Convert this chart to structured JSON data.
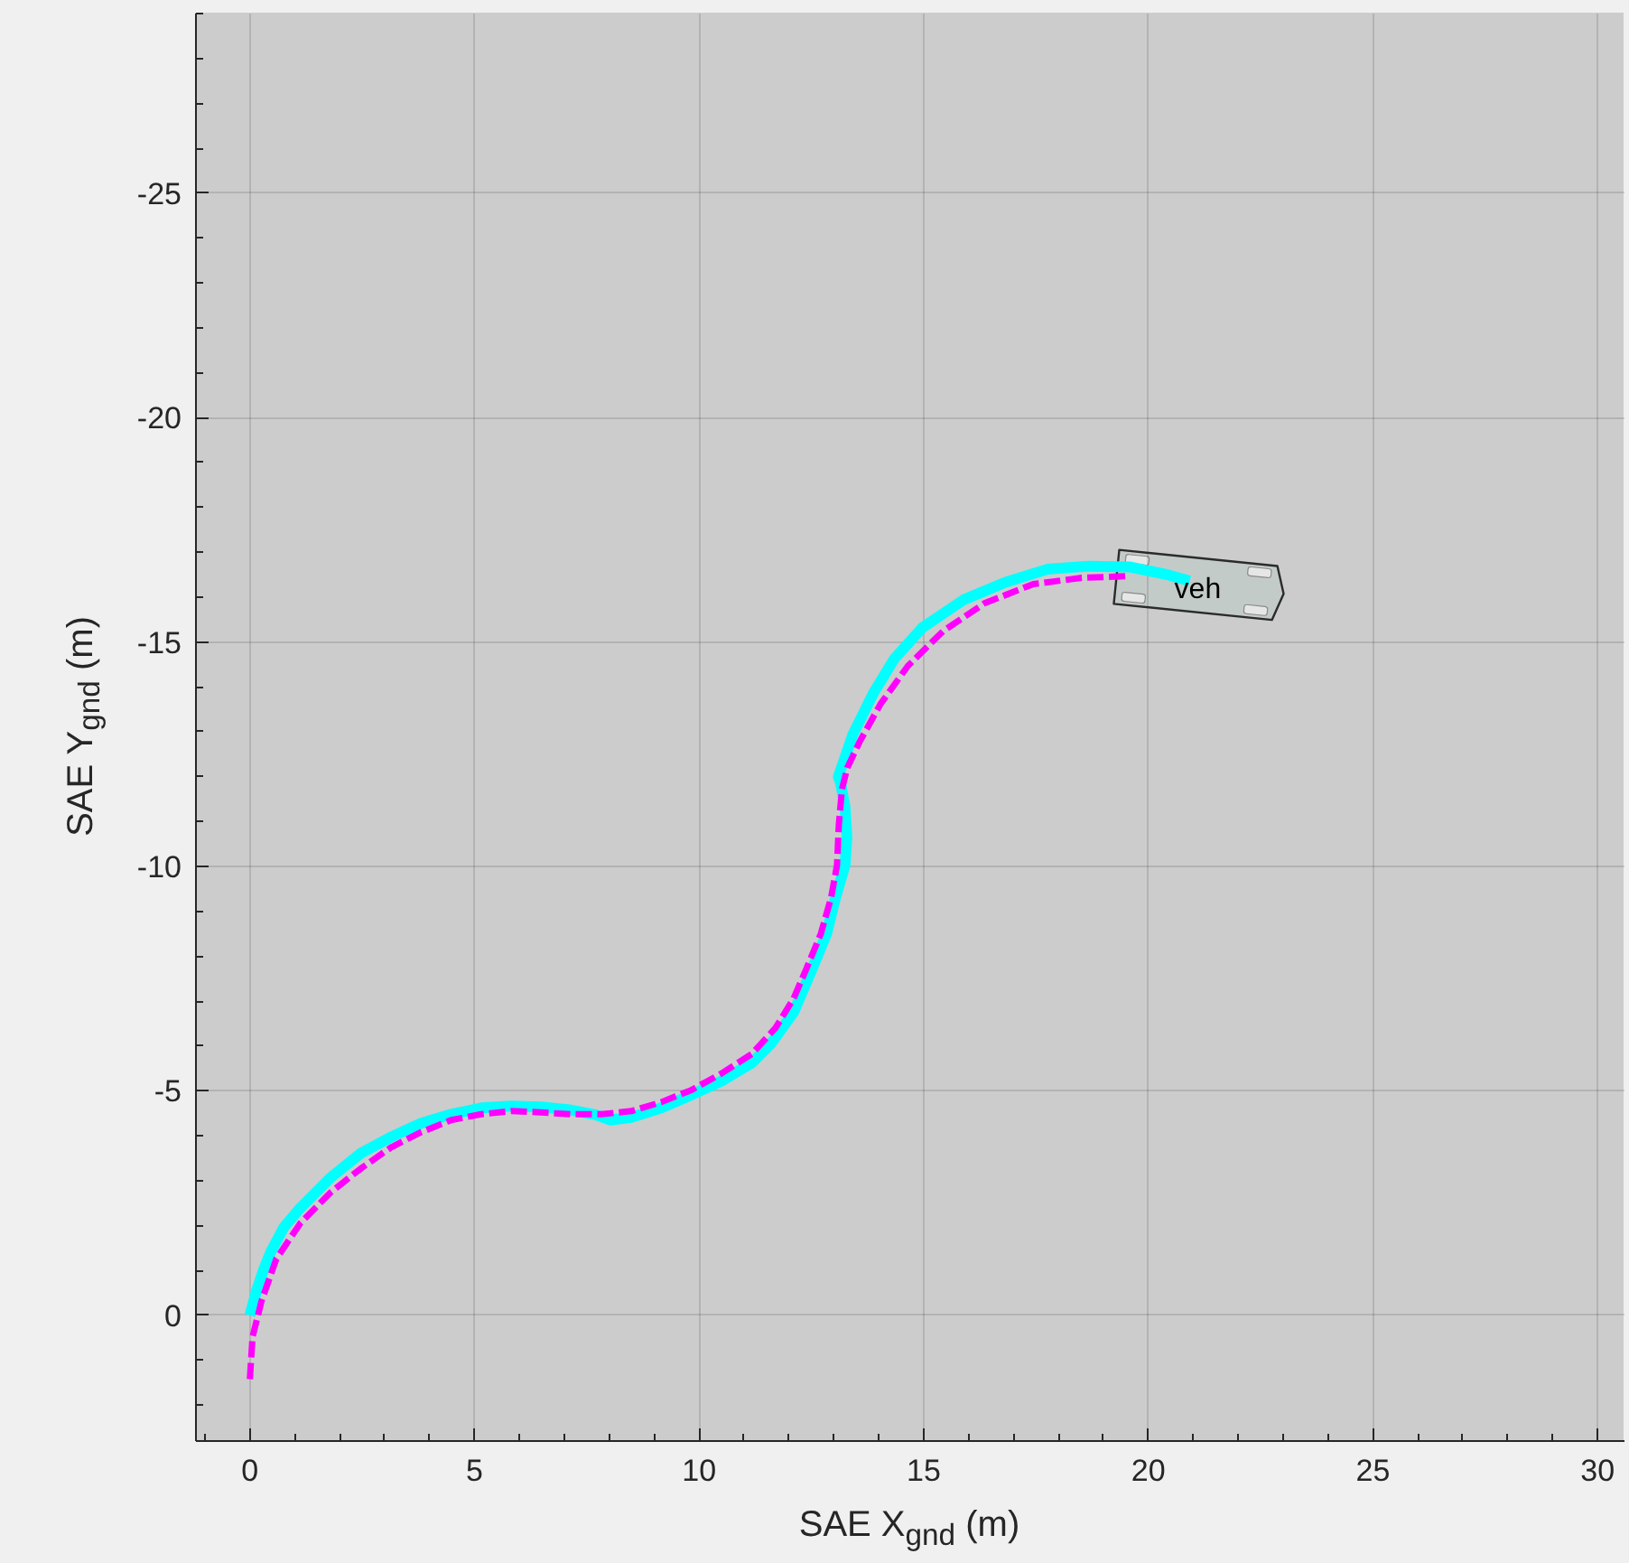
{
  "chart_data": {
    "type": "line",
    "xlabel": "SAE X$_{gnd}$ (m)",
    "ylabel": "SAE Y$_{gnd}$ (m)",
    "xlim": [
      -1.2,
      30.6
    ],
    "ylim": [
      2.8,
      -29.0
    ],
    "xticks": [
      0,
      5,
      10,
      15,
      20,
      25,
      30
    ],
    "yticks": [
      0,
      -5,
      -10,
      -15,
      -20,
      -25
    ],
    "grid": true,
    "series": [
      {
        "color": "#00ffff",
        "line_style": "solid",
        "x": [
          0,
          0.15,
          0.3,
          0.46,
          0.75,
          1.13,
          1.8,
          2.47,
          3.14,
          3.81,
          4.48,
          5.15,
          5.82,
          6.49,
          7.16,
          7.7,
          8.02,
          8.49,
          9.16,
          9.83,
          10.5,
          11.17,
          11.6,
          12.11,
          12.51,
          12.84,
          13.04,
          13.25,
          13.29,
          13.25,
          13.15,
          13.1,
          13.42,
          13.88,
          14.35,
          14.97,
          15.89,
          16.82,
          17.75,
          18.67,
          19.6,
          20.38,
          20.92
        ],
        "values": [
          0,
          -0.55,
          -1.0,
          -1.4,
          -1.95,
          -2.4,
          -3.07,
          -3.61,
          -3.97,
          -4.28,
          -4.48,
          -4.62,
          -4.66,
          -4.64,
          -4.57,
          -4.47,
          -4.35,
          -4.41,
          -4.62,
          -4.91,
          -5.22,
          -5.62,
          -6.05,
          -6.76,
          -7.7,
          -8.5,
          -9.31,
          -10.03,
          -10.65,
          -11.32,
          -11.86,
          -12.0,
          -12.93,
          -13.86,
          -14.63,
          -15.32,
          -15.94,
          -16.33,
          -16.62,
          -16.69,
          -16.67,
          -16.51,
          -16.36
        ]
      },
      {
        "color": "#ff00ff",
        "line_style": "dashed",
        "x": [
          0,
          0.06,
          0.26,
          0.59,
          1.13,
          1.8,
          2.47,
          3.14,
          3.81,
          4.48,
          5.15,
          5.82,
          6.49,
          7.16,
          7.82,
          8.49,
          9.16,
          9.83,
          10.5,
          11.17,
          11.7,
          12.1,
          12.38,
          12.71,
          12.94,
          13.07,
          13.11,
          13.18,
          13.3,
          13.57,
          14.04,
          14.65,
          15.43,
          16.35,
          17.44,
          18.52,
          19.6
        ],
        "values": [
          1.42,
          0.48,
          -0.32,
          -1.26,
          -2.06,
          -2.74,
          -3.27,
          -3.74,
          -4.08,
          -4.35,
          -4.48,
          -4.55,
          -4.52,
          -4.48,
          -4.48,
          -4.55,
          -4.75,
          -5.02,
          -5.39,
          -5.82,
          -6.4,
          -7.05,
          -7.7,
          -8.5,
          -9.31,
          -10.03,
          -10.92,
          -11.72,
          -12.2,
          -12.77,
          -13.62,
          -14.47,
          -15.24,
          -15.86,
          -16.29,
          -16.43,
          -16.47
        ]
      }
    ],
    "annotations": [
      {
        "text": "veh",
        "x": 21.1,
        "y": -16.15
      }
    ]
  }
}
